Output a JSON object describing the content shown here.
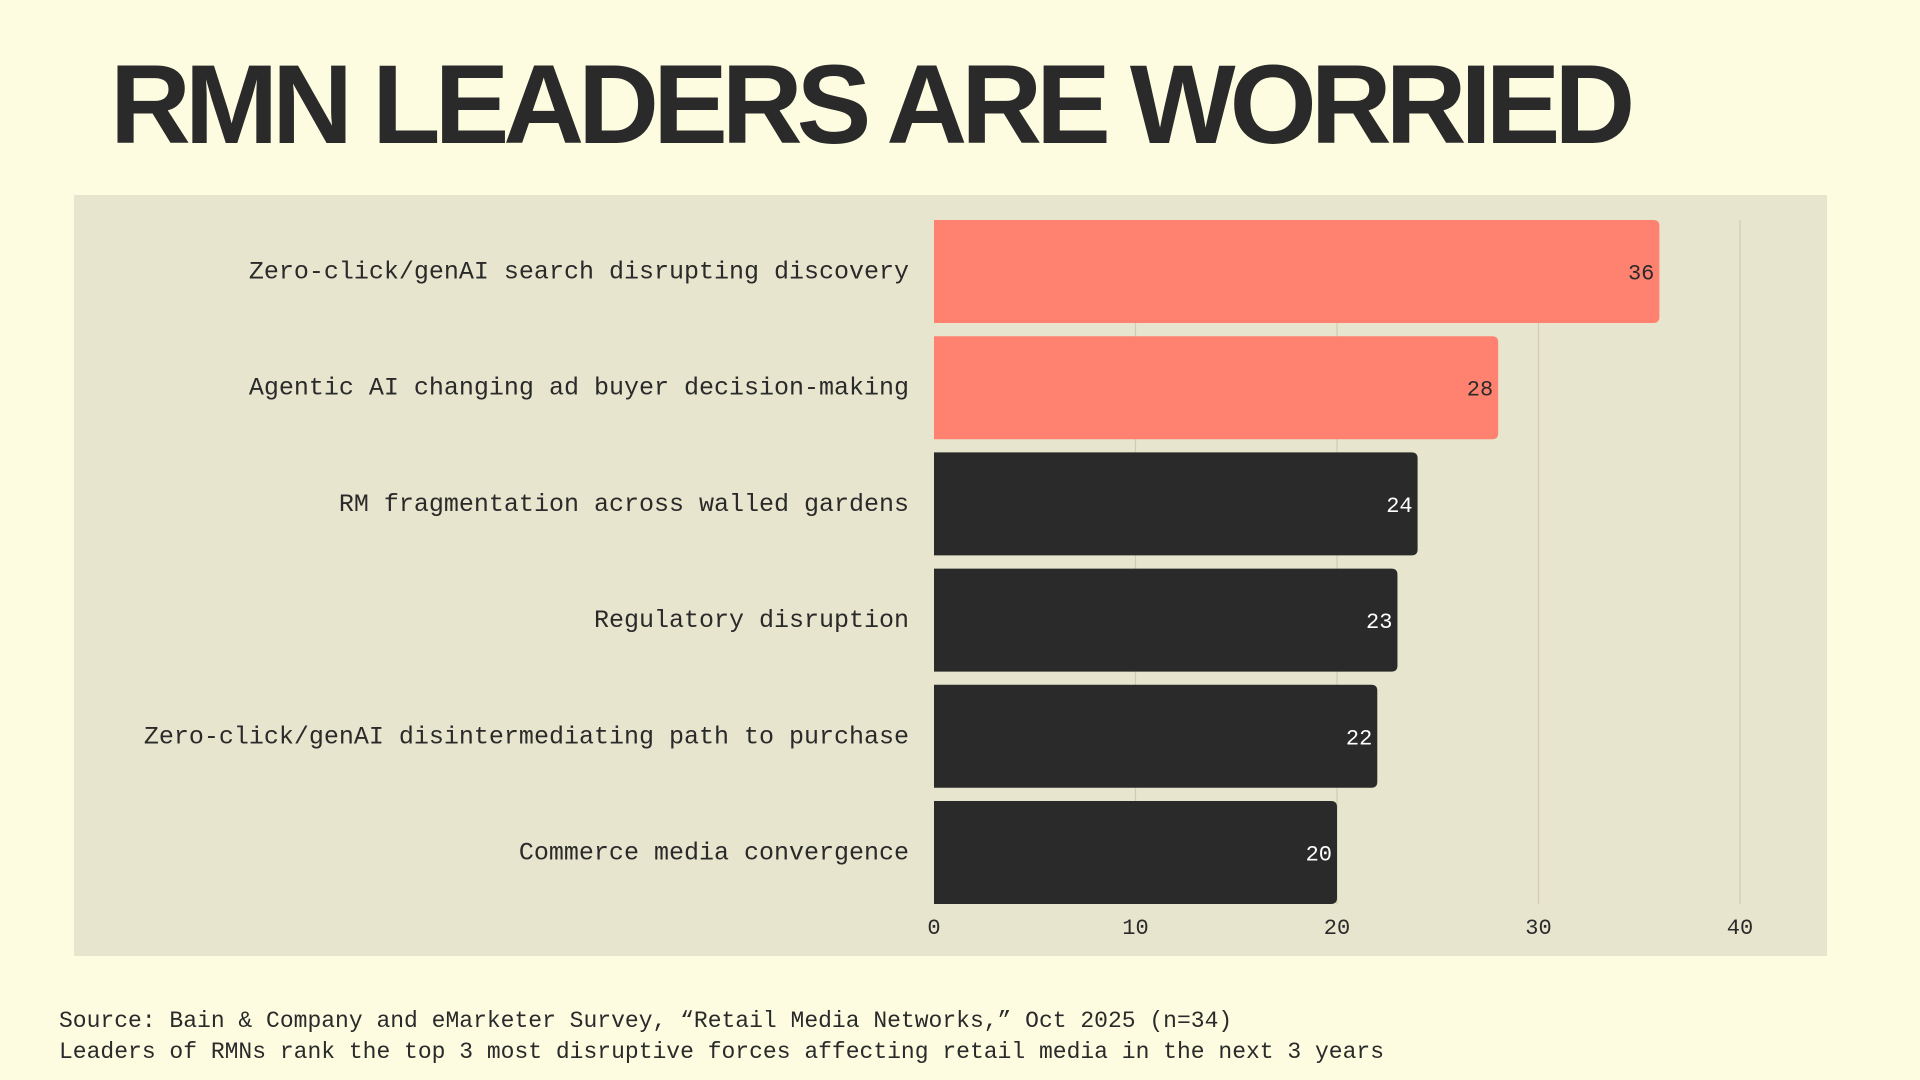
{
  "title": "RMN LEADERS ARE WORRIED",
  "chart_data": {
    "type": "bar",
    "orientation": "horizontal",
    "categories": [
      "Zero-click/genAI search disrupting discovery",
      "Agentic AI changing ad buyer decision-making",
      "RM fragmentation across walled gardens",
      "Regulatory disruption",
      "Zero-click/genAI disintermediating path to purchase",
      "Commerce media convergence"
    ],
    "values": [
      36,
      28,
      24,
      23,
      22,
      20
    ],
    "xlim": [
      0,
      40
    ],
    "xticks": [
      "0",
      "10",
      "20",
      "30",
      "40"
    ],
    "grid": true,
    "colors": {
      "highlight": "#FF8270",
      "default": "#2A2A2A",
      "label_on_highlight": "#2A2A2A",
      "label_on_default": "#FFFFFF",
      "gridline": "#CFCCB5"
    },
    "highlighted_categories": [
      0,
      1
    ]
  },
  "footer": {
    "source": "Source: Bain & Company and eMarketer Survey, “Retail Media Networks,” Oct 2025 (n=34)",
    "note": "Leaders of RMNs rank the top 3 most disruptive forces affecting retail media in the next 3 years"
  }
}
